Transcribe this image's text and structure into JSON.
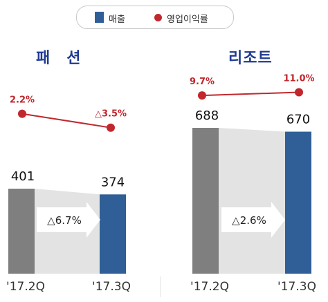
{
  "legend": {
    "sales_label": "매출",
    "margin_label": "영업이익률"
  },
  "colors": {
    "bar_prev": "#7f7f7f",
    "bar_curr": "#2f5f96",
    "bridge": "#e3e3e3",
    "arrow": "#ffffff",
    "line": "#c0282e",
    "title": "#1f3a93",
    "axis": "#333333"
  },
  "chart_data": [
    {
      "type": "bar",
      "title": "패　션",
      "categories": [
        "'17.2Q",
        "'17.3Q"
      ],
      "values": [
        401,
        374
      ],
      "value_labels": [
        "401",
        "374"
      ],
      "change_label": "△6.7%",
      "ylim": [
        0,
        750
      ],
      "line_series": {
        "name": "영업이익률",
        "values": [
          2.2,
          -3.5
        ],
        "labels": [
          "2.2%",
          "△3.5%"
        ]
      }
    },
    {
      "type": "bar",
      "title": "리조트",
      "categories": [
        "'17.2Q",
        "'17.3Q"
      ],
      "values": [
        688,
        670
      ],
      "value_labels": [
        "688",
        "670"
      ],
      "change_label": "△2.6%",
      "ylim": [
        0,
        750
      ],
      "line_series": {
        "name": "영업이익률",
        "values": [
          9.7,
          11.0
        ],
        "labels": [
          "9.7%",
          "11.0%"
        ]
      }
    }
  ]
}
